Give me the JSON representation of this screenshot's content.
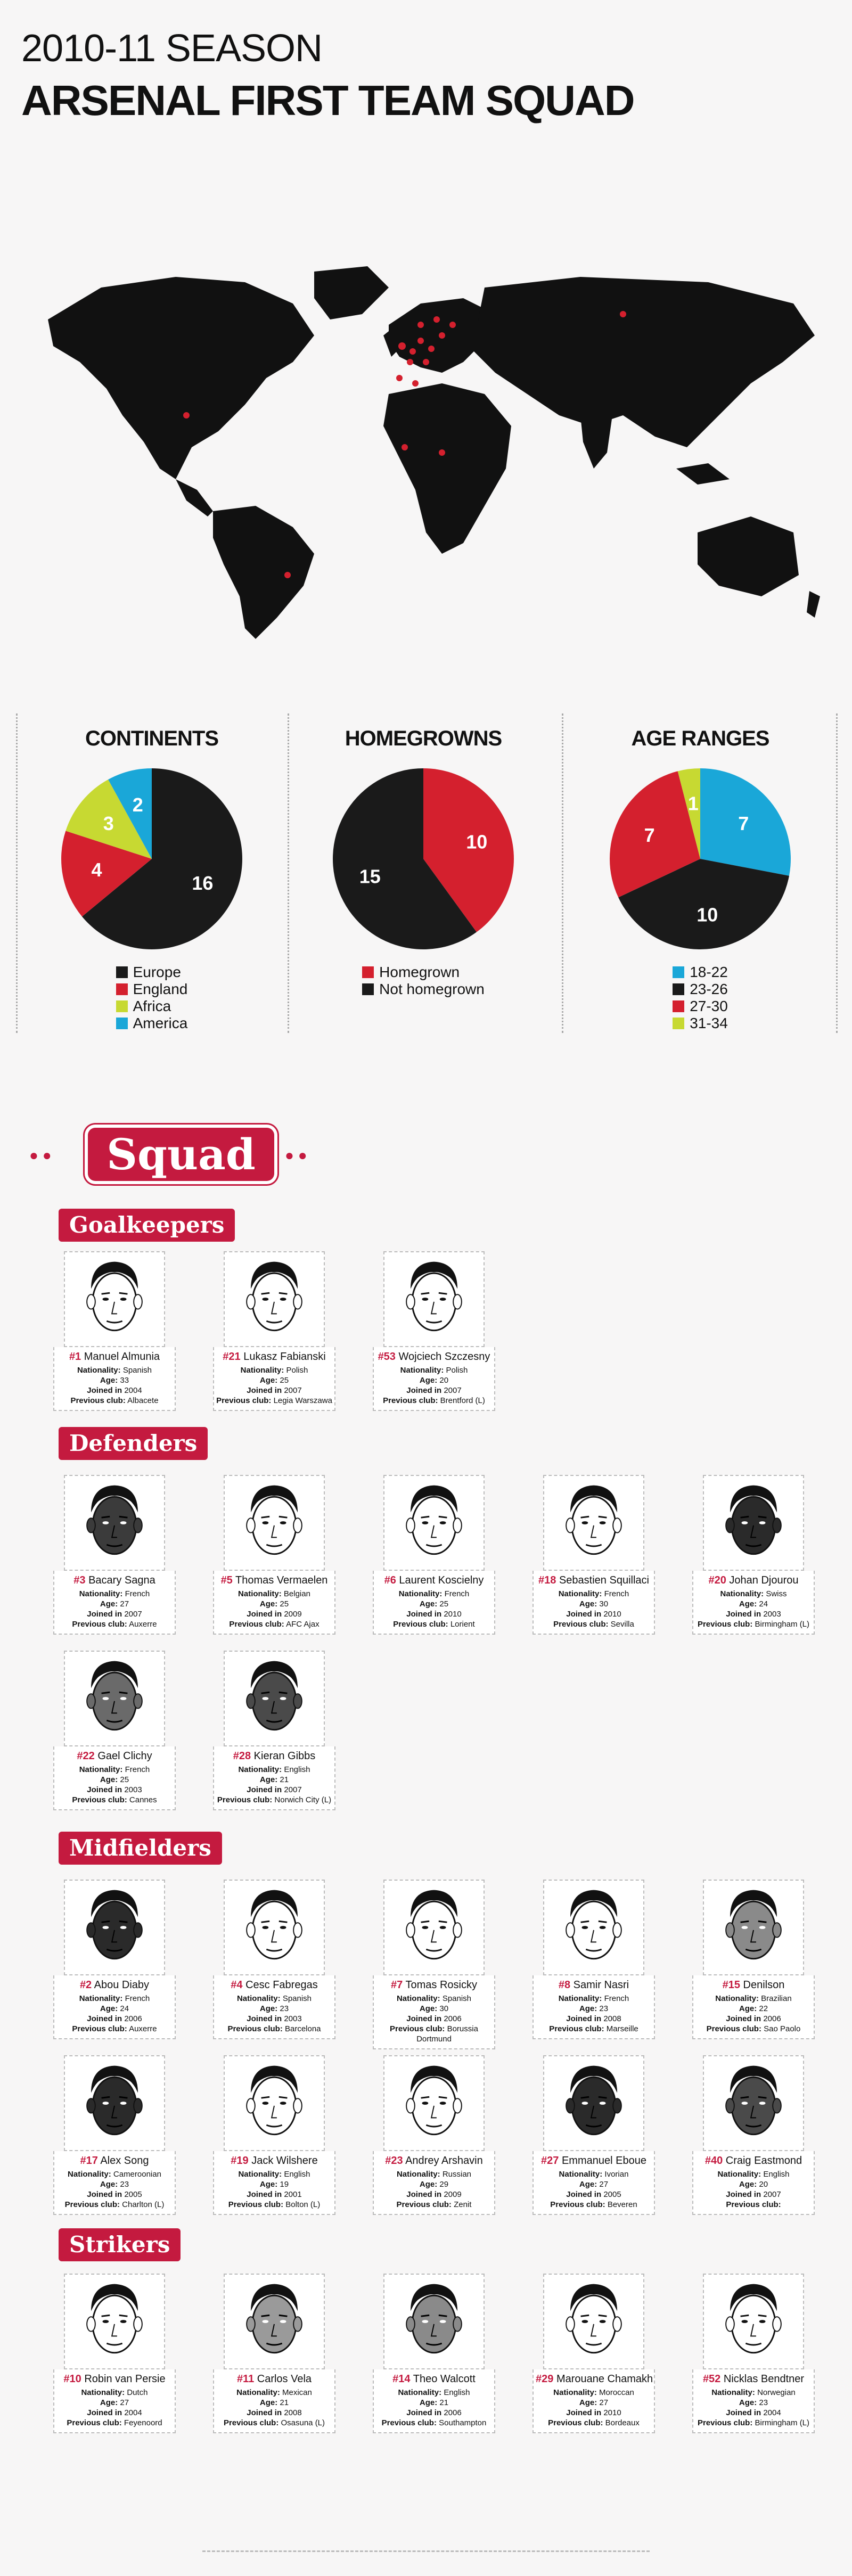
{
  "header": {
    "season": "2010-11 SEASON",
    "title": "ARSENAL FIRST TEAM SQUAD"
  },
  "colors": {
    "black": "#1a1a1a",
    "red": "#d4202e",
    "lime": "#c7d932",
    "blue": "#1aa7d8"
  },
  "stats": {
    "continents": {
      "title": "CONTINENTS",
      "slices": [
        {
          "label": "Europe",
          "value": 16,
          "color": "#1a1a1a"
        },
        {
          "label": "England",
          "value": 4,
          "color": "#d4202e"
        },
        {
          "label": "Africa",
          "value": 3,
          "color": "#c7d932"
        },
        {
          "label": "America",
          "value": 2,
          "color": "#1aa7d8"
        }
      ]
    },
    "homegrowns": {
      "title": "HOMEGROWNS",
      "slices": [
        {
          "label": "Homegrown",
          "value": 10,
          "color": "#d4202e"
        },
        {
          "label": "Not homegrown",
          "value": 15,
          "color": "#1a1a1a"
        }
      ]
    },
    "ages": {
      "title": "AGE RANGES",
      "slices": [
        {
          "label": "18-22",
          "value": 7,
          "color": "#1aa7d8"
        },
        {
          "label": "23-26",
          "value": 10,
          "color": "#1a1a1a"
        },
        {
          "label": "27-30",
          "value": 7,
          "color": "#d4202e"
        },
        {
          "label": "31-34",
          "value": 1,
          "color": "#c7d932"
        }
      ]
    }
  },
  "squad_title": "Squad",
  "field_labels": {
    "nationality": "Nationality:",
    "age": "Age:",
    "joined": "Joined in",
    "previous": "Previous club:"
  },
  "sections": [
    {
      "name": "Goalkeepers",
      "players": [
        {
          "number": "#1",
          "name": "Manuel Almunia",
          "nationality": "Spanish",
          "age": "33",
          "joined": "2004",
          "previous": "Albacete",
          "skin": "#ffffff"
        },
        {
          "number": "#21",
          "name": "Lukasz Fabianski",
          "nationality": "Polish",
          "age": "25",
          "joined": "2007",
          "previous": "Legia Warszawa",
          "skin": "#ffffff"
        },
        {
          "number": "#53",
          "name": "Wojciech Szczesny",
          "nationality": "Polish",
          "age": "20",
          "joined": "2007",
          "previous": "Brentford (L)",
          "skin": "#ffffff"
        }
      ]
    },
    {
      "name": "Defenders",
      "players": [
        {
          "number": "#3",
          "name": "Bacary Sagna",
          "nationality": "French",
          "age": "27",
          "joined": "2007",
          "previous": "Auxerre",
          "skin": "#3b3b3b"
        },
        {
          "number": "#5",
          "name": "Thomas Vermaelen",
          "nationality": "Belgian",
          "age": "25",
          "joined": "2009",
          "previous": "AFC Ajax",
          "skin": "#ffffff"
        },
        {
          "number": "#6",
          "name": "Laurent Koscielny",
          "nationality": "French",
          "age": "25",
          "joined": "2010",
          "previous": "Lorient",
          "skin": "#ffffff"
        },
        {
          "number": "#18",
          "name": "Sebastien Squillaci",
          "nationality": "French",
          "age": "30",
          "joined": "2010",
          "previous": "Sevilla",
          "skin": "#ffffff"
        },
        {
          "number": "#20",
          "name": "Johan Djourou",
          "nationality": "Swiss",
          "age": "24",
          "joined": "2003",
          "previous": "Birmingham (L)",
          "skin": "#2a2a2a"
        },
        {
          "number": "#22",
          "name": "Gael Clichy",
          "nationality": "French",
          "age": "25",
          "joined": "2003",
          "previous": "Cannes",
          "skin": "#6a6a6a"
        },
        {
          "number": "#28",
          "name": "Kieran Gibbs",
          "nationality": "English",
          "age": "21",
          "joined": "2007",
          "previous": "Norwich City (L)",
          "skin": "#4a4a4a"
        }
      ]
    },
    {
      "name": "Midfielders",
      "players": [
        {
          "number": "#2",
          "name": "Abou Diaby",
          "nationality": "French",
          "age": "24",
          "joined": "2006",
          "previous": "Auxerre",
          "skin": "#2a2a2a"
        },
        {
          "number": "#4",
          "name": "Cesc Fabregas",
          "nationality": "Spanish",
          "age": "23",
          "joined": "2003",
          "previous": "Barcelona",
          "skin": "#ffffff"
        },
        {
          "number": "#7",
          "name": "Tomas Rosicky",
          "nationality": "Spanish",
          "age": "30",
          "joined": "2006",
          "previous": "Borussia Dortmund",
          "skin": "#ffffff"
        },
        {
          "number": "#8",
          "name": "Samir Nasri",
          "nationality": "French",
          "age": "23",
          "joined": "2008",
          "previous": "Marseille",
          "skin": "#ffffff"
        },
        {
          "number": "#15",
          "name": "Denilson",
          "nationality": "Brazilian",
          "age": "22",
          "joined": "2006",
          "previous": "Sao Paolo",
          "skin": "#8a8a8a"
        },
        {
          "number": "#17",
          "name": "Alex Song",
          "nationality": "Cameroonian",
          "age": "23",
          "joined": "2005",
          "previous": "Charlton (L)",
          "skin": "#2a2a2a"
        },
        {
          "number": "#19",
          "name": "Jack Wilshere",
          "nationality": "English",
          "age": "19",
          "joined": "2001",
          "previous": "Bolton (L)",
          "skin": "#ffffff"
        },
        {
          "number": "#23",
          "name": "Andrey Arshavin",
          "nationality": "Russian",
          "age": "29",
          "joined": "2009",
          "previous": "Zenit",
          "skin": "#ffffff"
        },
        {
          "number": "#27",
          "name": "Emmanuel Eboue",
          "nationality": "Ivorian",
          "age": "27",
          "joined": "2005",
          "previous": "Beveren",
          "skin": "#2a2a2a"
        },
        {
          "number": "#40",
          "name": "Craig Eastmond",
          "nationality": "English",
          "age": "20",
          "joined": "2007",
          "previous": "",
          "skin": "#4a4a4a"
        }
      ]
    },
    {
      "name": "Strikers",
      "players": [
        {
          "number": "#10",
          "name": "Robin van Persie",
          "nationality": "Dutch",
          "age": "27",
          "joined": "2004",
          "previous": "Feyenoord",
          "skin": "#ffffff"
        },
        {
          "number": "#11",
          "name": "Carlos Vela",
          "nationality": "Mexican",
          "age": "21",
          "joined": "2008",
          "previous": "Osasuna (L)",
          "skin": "#9a9a9a"
        },
        {
          "number": "#14",
          "name": "Theo Walcott",
          "nationality": "English",
          "age": "21",
          "joined": "2006",
          "previous": "Southampton",
          "skin": "#8a8a8a"
        },
        {
          "number": "#29",
          "name": "Marouane Chamakh",
          "nationality": "Moroccan",
          "age": "27",
          "joined": "2010",
          "previous": "Bordeaux",
          "skin": "#ffffff"
        },
        {
          "number": "#52",
          "name": "Nicklas Bendtner",
          "nationality": "Norwegian",
          "age": "23",
          "joined": "2004",
          "previous": "Birmingham (L)",
          "skin": "#ffffff"
        }
      ]
    }
  ]
}
